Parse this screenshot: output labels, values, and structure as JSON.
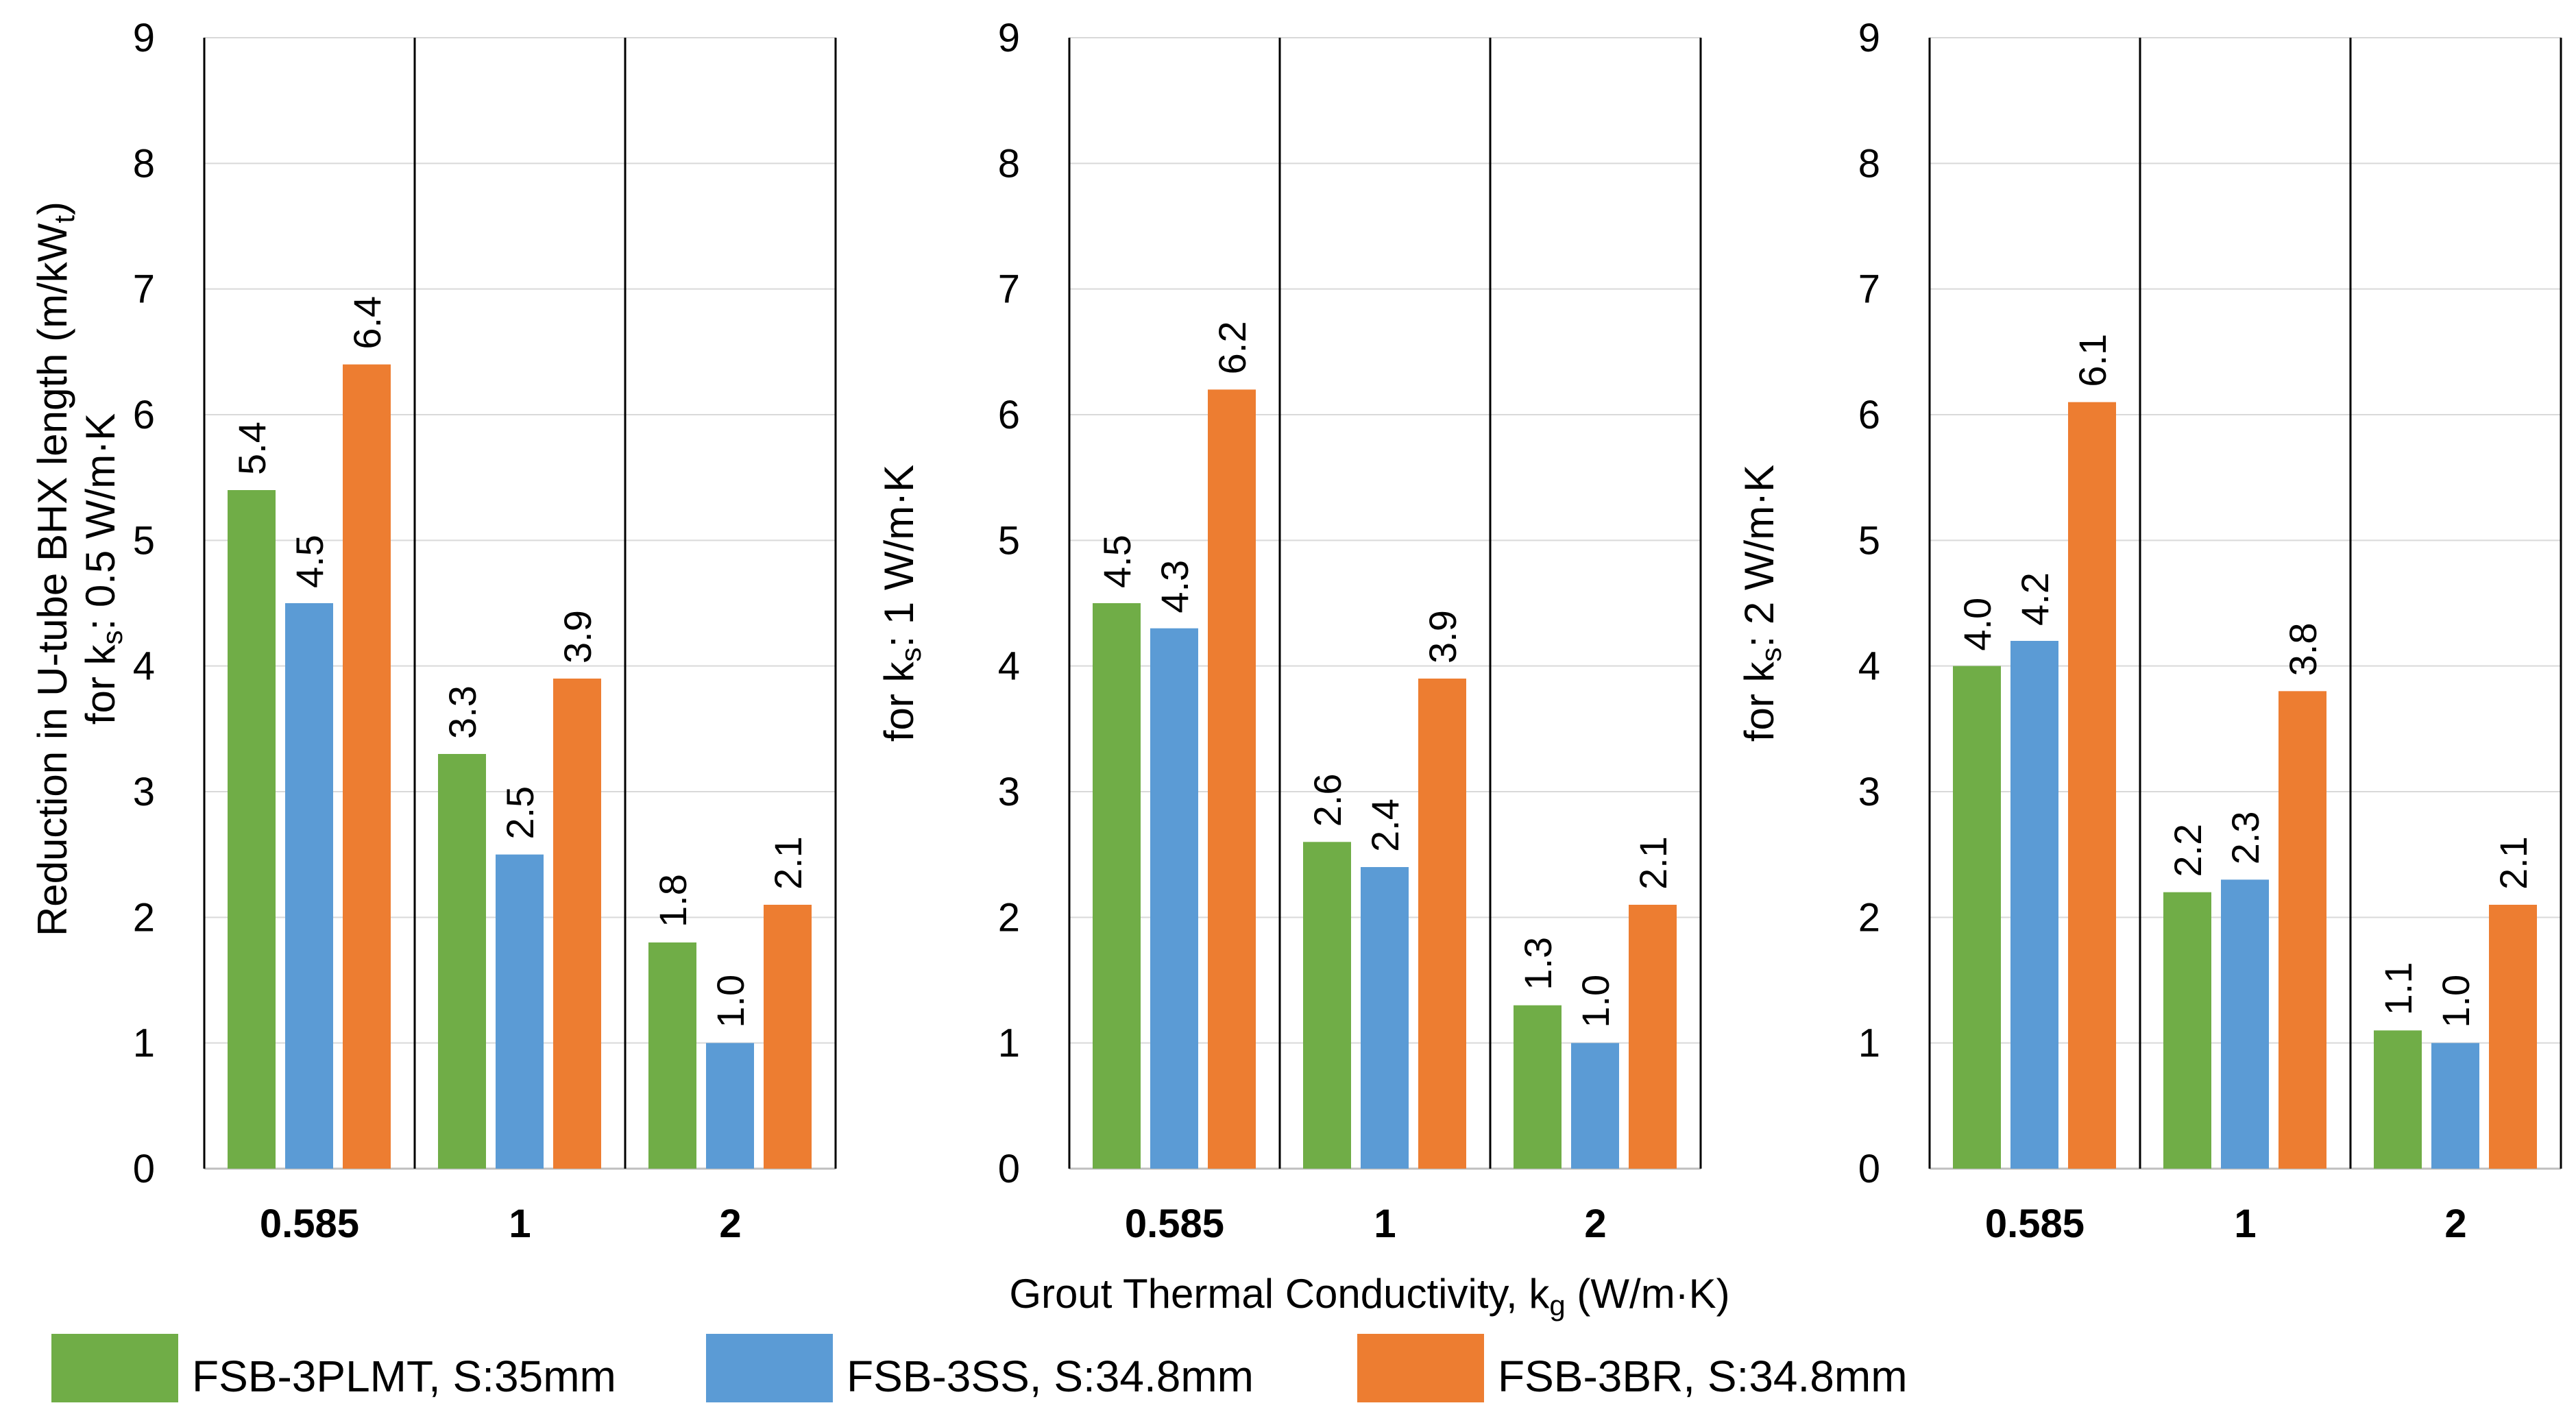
{
  "chart_data": {
    "type": "bar",
    "panels": [
      {
        "ylabel_lines": [
          {
            "parts": [
              {
                "t": "Reduction in U-tube BHX length (m/kW"
              },
              {
                "t": "t",
                "sub": true
              },
              {
                "t": ")"
              }
            ]
          },
          {
            "parts": [
              {
                "t": "for k"
              },
              {
                "t": "s",
                "sub": true
              },
              {
                "t": ": 0.5 W/m·K"
              }
            ]
          }
        ],
        "categories": [
          "0.585",
          "1",
          "2"
        ],
        "series": [
          {
            "name": "FSB-3PLMT, S:35mm",
            "values": [
              5.4,
              3.3,
              1.8
            ],
            "labels": [
              "5.4",
              "3.3",
              "1.8"
            ]
          },
          {
            "name": "FSB-3SS, S:34.8mm",
            "values": [
              4.5,
              2.5,
              1.0
            ],
            "labels": [
              "4.5",
              "2.5",
              "1.0"
            ]
          },
          {
            "name": "FSB-3BR, S:34.8mm",
            "values": [
              6.4,
              3.9,
              2.1
            ],
            "labels": [
              "6.4",
              "3.9",
              "2.1"
            ]
          }
        ]
      },
      {
        "ylabel_lines": [
          {
            "parts": [
              {
                "t": "for k"
              },
              {
                "t": "s",
                "sub": true
              },
              {
                "t": ": 1 W/m·K"
              }
            ]
          }
        ],
        "categories": [
          "0.585",
          "1",
          "2"
        ],
        "series": [
          {
            "name": "FSB-3PLMT, S:35mm",
            "values": [
              4.5,
              2.6,
              1.3
            ],
            "labels": [
              "4.5",
              "2.6",
              "1.3"
            ]
          },
          {
            "name": "FSB-3SS, S:34.8mm",
            "values": [
              4.3,
              2.4,
              1.0
            ],
            "labels": [
              "4.3",
              "2.4",
              "1.0"
            ]
          },
          {
            "name": "FSB-3BR, S:34.8mm",
            "values": [
              6.2,
              3.9,
              2.1
            ],
            "labels": [
              "6.2",
              "3.9",
              "2.1"
            ]
          }
        ]
      },
      {
        "ylabel_lines": [
          {
            "parts": [
              {
                "t": "for k"
              },
              {
                "t": "s",
                "sub": true
              },
              {
                "t": ": 2 W/m·K"
              }
            ]
          }
        ],
        "categories": [
          "0.585",
          "1",
          "2"
        ],
        "series": [
          {
            "name": "FSB-3PLMT, S:35mm",
            "values": [
              4.0,
              2.2,
              1.1
            ],
            "labels": [
              "4.0",
              "2.2",
              "1.1"
            ]
          },
          {
            "name": "FSB-3SS, S:34.8mm",
            "values": [
              4.2,
              2.3,
              1.0
            ],
            "labels": [
              "4.2",
              "2.3",
              "1.0"
            ]
          },
          {
            "name": "FSB-3BR, S:34.8mm",
            "values": [
              6.1,
              3.8,
              2.1
            ],
            "labels": [
              "6.1",
              "3.8",
              "2.1"
            ]
          }
        ]
      }
    ],
    "ylim": [
      0,
      9
    ],
    "yticks": [
      "0",
      "1",
      "2",
      "3",
      "4",
      "5",
      "6",
      "7",
      "8",
      "9"
    ],
    "xlabel_parts": [
      {
        "t": "Grout Thermal Conductivity,  k"
      },
      {
        "t": "g",
        "sub": true
      },
      {
        "t": " (W/m·K)"
      }
    ],
    "legend": {
      "placement": "bottom",
      "entries": [
        "FSB-3PLMT, S:35mm",
        "FSB-3SS, S:34.8mm",
        "FSB-3BR, S:34.8mm"
      ]
    },
    "colors": [
      "#70AD47",
      "#5B9BD5",
      "#ED7D31"
    ],
    "grid": true
  }
}
